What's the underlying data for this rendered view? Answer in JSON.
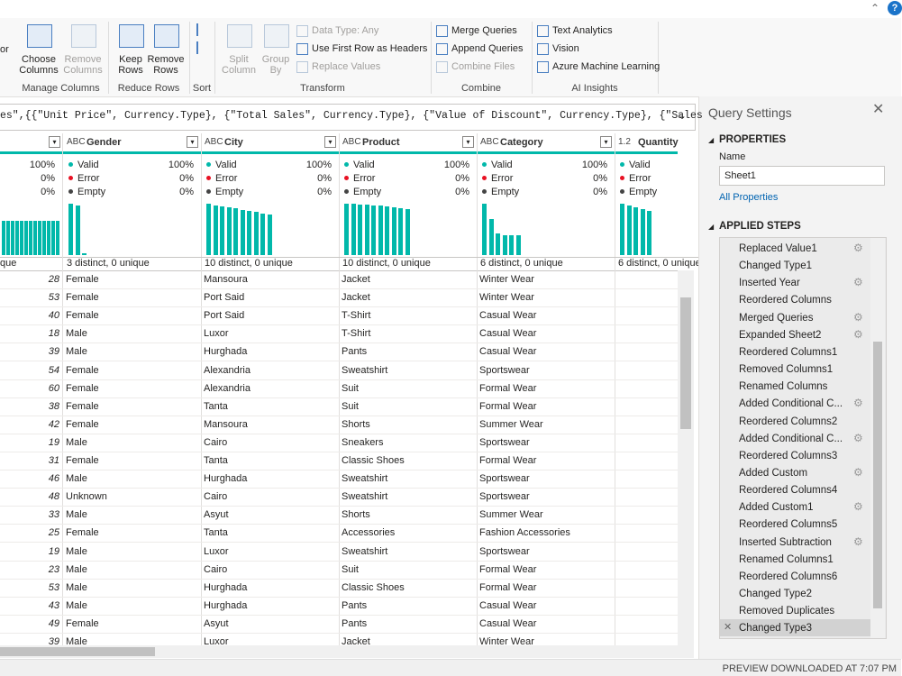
{
  "ribbon": {
    "cut_label": "or",
    "groups": [
      {
        "label": "Manage Columns",
        "buttons": [
          {
            "lines": [
              "Choose",
              "Columns"
            ]
          },
          {
            "lines": [
              "Remove",
              "Columns"
            ],
            "disabled": true
          }
        ]
      },
      {
        "label": "Reduce Rows",
        "buttons": [
          {
            "lines": [
              "Keep",
              "Rows"
            ]
          },
          {
            "lines": [
              "Remove",
              "Rows"
            ]
          }
        ]
      },
      {
        "label": "Sort"
      },
      {
        "label": "Transform",
        "buttons": [
          {
            "lines": [
              "Split",
              "Column"
            ],
            "disabled": true
          },
          {
            "lines": [
              "Group",
              "By"
            ],
            "disabled": true
          }
        ],
        "items": [
          {
            "text": "Data Type: Any",
            "disabled": true
          },
          {
            "text": "Use First Row as Headers"
          },
          {
            "text": "Replace Values",
            "disabled": true
          }
        ]
      },
      {
        "label": "Combine",
        "items": [
          {
            "text": "Merge Queries"
          },
          {
            "text": "Append Queries"
          },
          {
            "text": "Combine Files",
            "disabled": true
          }
        ]
      },
      {
        "label": "AI Insights",
        "items": [
          {
            "text": "Text Analytics"
          },
          {
            "text": "Vision"
          },
          {
            "text": "Azure Machine Learning"
          }
        ]
      }
    ]
  },
  "formula": "es\",{{\"Unit Price\", Currency.Type}, {\"Total Sales\", Currency.Type}, {\"Value of Discount\", Currency.Type}, {\"Sales",
  "grid": {
    "profile_labels": [
      "Valid",
      "Error",
      "Empty"
    ],
    "columns": [
      {
        "stats": [
          "100%",
          "0%",
          "0%"
        ],
        "bars": [
          66,
          66,
          66,
          66,
          66,
          66,
          66,
          66,
          66,
          66,
          66,
          66,
          66
        ],
        "distinct": "que"
      },
      {
        "type": "ABC",
        "name": "Gender",
        "stats": [
          "100%",
          "0%",
          "0%"
        ],
        "bars": [
          98,
          95,
          4
        ],
        "distinct": "3 distinct, 0 unique"
      },
      {
        "type": "ABC",
        "name": "City",
        "stats": [
          "100%",
          "0%",
          "0%"
        ],
        "bars": [
          98,
          95,
          93,
          91,
          89,
          86,
          84,
          82,
          79,
          77
        ],
        "distinct": "10 distinct, 0 unique"
      },
      {
        "type": "ABC",
        "name": "Product",
        "stats": [
          "100%",
          "0%",
          "0%"
        ],
        "bars": [
          98,
          98,
          97,
          97,
          95,
          95,
          93,
          91,
          90,
          88
        ],
        "distinct": "10 distinct, 0 unique"
      },
      {
        "type": "ABC",
        "name": "Category",
        "stats": [
          "100%",
          "0%",
          "0%"
        ],
        "bars": [
          98,
          69,
          41,
          38,
          38,
          38
        ],
        "distinct": "6 distinct, 0 unique"
      },
      {
        "type": "1.2",
        "name": "Quantity",
        "bars": [
          98,
          95,
          91,
          88,
          84
        ],
        "distinct": "6 distinct, 0 unique"
      }
    ],
    "rows": [
      [
        28,
        "Female",
        "Mansoura",
        "Jacket",
        "Winter Wear"
      ],
      [
        53,
        "Female",
        "Port Said",
        "Jacket",
        "Winter Wear"
      ],
      [
        40,
        "Female",
        "Port Said",
        "T-Shirt",
        "Casual Wear"
      ],
      [
        18,
        "Male",
        "Luxor",
        "T-Shirt",
        "Casual Wear"
      ],
      [
        39,
        "Male",
        "Hurghada",
        "Pants",
        "Casual Wear"
      ],
      [
        54,
        "Female",
        "Alexandria",
        "Sweatshirt",
        "Sportswear"
      ],
      [
        60,
        "Female",
        "Alexandria",
        "Suit",
        "Formal Wear"
      ],
      [
        38,
        "Female",
        "Tanta",
        "Suit",
        "Formal Wear"
      ],
      [
        42,
        "Female",
        "Mansoura",
        "Shorts",
        "Summer Wear"
      ],
      [
        19,
        "Male",
        "Cairo",
        "Sneakers",
        "Sportswear"
      ],
      [
        31,
        "Female",
        "Tanta",
        "Classic Shoes",
        "Formal Wear"
      ],
      [
        46,
        "Male",
        "Hurghada",
        "Sweatshirt",
        "Sportswear"
      ],
      [
        48,
        "Unknown",
        "Cairo",
        "Sweatshirt",
        "Sportswear"
      ],
      [
        33,
        "Male",
        "Asyut",
        "Shorts",
        "Summer Wear"
      ],
      [
        25,
        "Female",
        "Tanta",
        "Accessories",
        "Fashion Accessories"
      ],
      [
        19,
        "Male",
        "Luxor",
        "Sweatshirt",
        "Sportswear"
      ],
      [
        23,
        "Male",
        "Cairo",
        "Suit",
        "Formal Wear"
      ],
      [
        53,
        "Male",
        "Hurghada",
        "Classic Shoes",
        "Formal Wear"
      ],
      [
        43,
        "Male",
        "Hurghada",
        "Pants",
        "Casual Wear"
      ],
      [
        49,
        "Female",
        "Asyut",
        "Pants",
        "Casual Wear"
      ],
      [
        39,
        "Male",
        "Luxor",
        "Jacket",
        "Winter Wear"
      ]
    ]
  },
  "query_settings": {
    "title": "Query Settings",
    "properties_heading": "PROPERTIES",
    "name_label": "Name",
    "name_value": "Sheet1",
    "all_properties": "All Properties",
    "steps_heading": "APPLIED STEPS",
    "steps": [
      {
        "name": "Replaced Value1",
        "settings": true
      },
      {
        "name": "Changed Type1"
      },
      {
        "name": "Inserted Year",
        "settings": true
      },
      {
        "name": "Reordered Columns"
      },
      {
        "name": "Merged Queries",
        "settings": true
      },
      {
        "name": "Expanded Sheet2",
        "settings": true
      },
      {
        "name": "Reordered Columns1"
      },
      {
        "name": "Removed Columns1"
      },
      {
        "name": "Renamed Columns"
      },
      {
        "name": "Added Conditional C...",
        "settings": true
      },
      {
        "name": "Reordered Columns2"
      },
      {
        "name": "Added Conditional C...",
        "settings": true
      },
      {
        "name": "Reordered Columns3"
      },
      {
        "name": "Added Custom",
        "settings": true
      },
      {
        "name": "Reordered Columns4"
      },
      {
        "name": "Added Custom1",
        "settings": true
      },
      {
        "name": "Reordered Columns5"
      },
      {
        "name": "Inserted Subtraction",
        "settings": true
      },
      {
        "name": "Renamed Columns1"
      },
      {
        "name": "Reordered Columns6"
      },
      {
        "name": "Changed Type2"
      },
      {
        "name": "Removed Duplicates"
      },
      {
        "name": "Changed Type3",
        "selected": true
      }
    ]
  },
  "status": "PREVIEW DOWNLOADED AT 7:07 PM"
}
